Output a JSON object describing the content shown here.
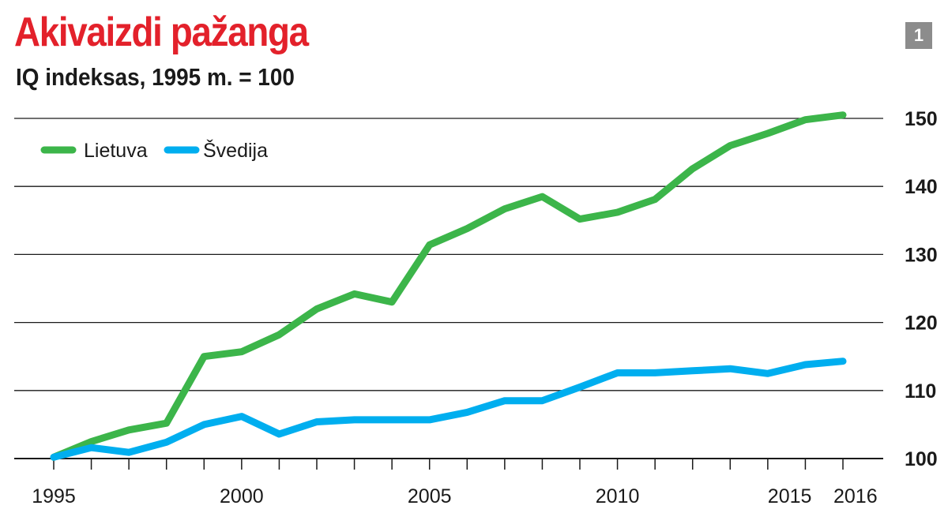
{
  "header": {
    "title": "Akivaizdi pažanga",
    "subtitle": "IQ indeksas, 1995 m. = 100",
    "badge": "1"
  },
  "colors": {
    "title": "#e3212b",
    "lietuva": "#3cb54a",
    "svedija": "#00aeef",
    "grid": "#1a1a1a",
    "badge_bg": "#8c8c8c"
  },
  "chart_data": {
    "type": "line",
    "title": "Akivaizdi pažanga",
    "subtitle": "IQ indeksas, 1995 m. = 100",
    "xlabel": "",
    "ylabel": "",
    "x": [
      1995,
      1996,
      1997,
      1998,
      1999,
      2000,
      2001,
      2002,
      2003,
      2004,
      2005,
      2006,
      2007,
      2008,
      2009,
      2010,
      2011,
      2012,
      2013,
      2014,
      2015,
      2016
    ],
    "xlim": [
      1995,
      2016
    ],
    "ylim": [
      100,
      150
    ],
    "yticks": [
      100,
      110,
      120,
      130,
      140,
      150
    ],
    "xticks": [
      1995,
      1996,
      1997,
      1998,
      1999,
      2000,
      2001,
      2002,
      2003,
      2004,
      2005,
      2006,
      2007,
      2008,
      2009,
      2010,
      2011,
      2012,
      2013,
      2014,
      2015,
      2016
    ],
    "xtick_labels": [
      {
        "year": 1995,
        "label": "1995"
      },
      {
        "year": 2000,
        "label": "2000"
      },
      {
        "year": 2005,
        "label": "2005"
      },
      {
        "year": 2010,
        "label": "2010"
      },
      {
        "year": 2015,
        "label": "2015"
      },
      {
        "year": 2016,
        "label": "2016"
      }
    ],
    "grid": true,
    "legend_position": "top-left",
    "series": [
      {
        "name": "Lietuva",
        "color": "#3cb54a",
        "values": [
          100.2,
          102.5,
          104.2,
          105.2,
          115.0,
          115.7,
          118.2,
          122.0,
          124.2,
          123.0,
          131.4,
          133.8,
          136.7,
          138.5,
          135.2,
          136.2,
          138.1,
          142.6,
          146.0,
          147.8,
          149.8,
          150.5
        ]
      },
      {
        "name": "Švedija",
        "color": "#00aeef",
        "values": [
          100.2,
          101.6,
          100.9,
          102.4,
          105.0,
          106.2,
          103.6,
          105.4,
          105.7,
          105.7,
          105.7,
          106.8,
          108.5,
          108.5,
          110.5,
          112.6,
          112.6,
          112.9,
          113.2,
          112.5,
          113.8,
          114.3
        ]
      }
    ]
  }
}
